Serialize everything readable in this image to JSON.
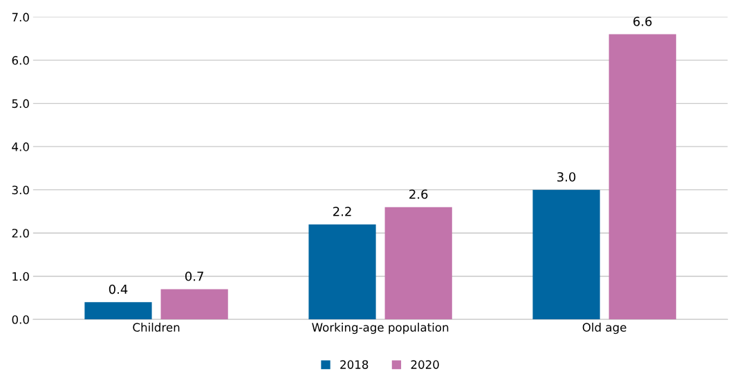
{
  "chart_data": {
    "type": "bar",
    "categories": [
      "Children",
      "Working-age population",
      "Old age"
    ],
    "series": [
      {
        "name": "2018",
        "color": "#0066a1",
        "values": [
          0.4,
          2.2,
          3.0
        ],
        "value_labels": [
          "0.4",
          "2.2",
          "3.0"
        ]
      },
      {
        "name": "2020",
        "color": "#c274ab",
        "values": [
          0.7,
          2.6,
          6.6
        ],
        "value_labels": [
          "0.7",
          "2.6",
          "6.6"
        ]
      }
    ],
    "ylim": [
      0,
      7
    ],
    "yticks": [
      {
        "value": 0,
        "label": "0.0"
      },
      {
        "value": 1,
        "label": "1.0"
      },
      {
        "value": 2,
        "label": "2.0"
      },
      {
        "value": 3,
        "label": "3.0"
      },
      {
        "value": 4,
        "label": "4.0"
      },
      {
        "value": 5,
        "label": "5.0"
      },
      {
        "value": 6,
        "label": "6.0"
      },
      {
        "value": 7,
        "label": "7.0"
      }
    ],
    "grid": "y",
    "legend": "bottom"
  }
}
